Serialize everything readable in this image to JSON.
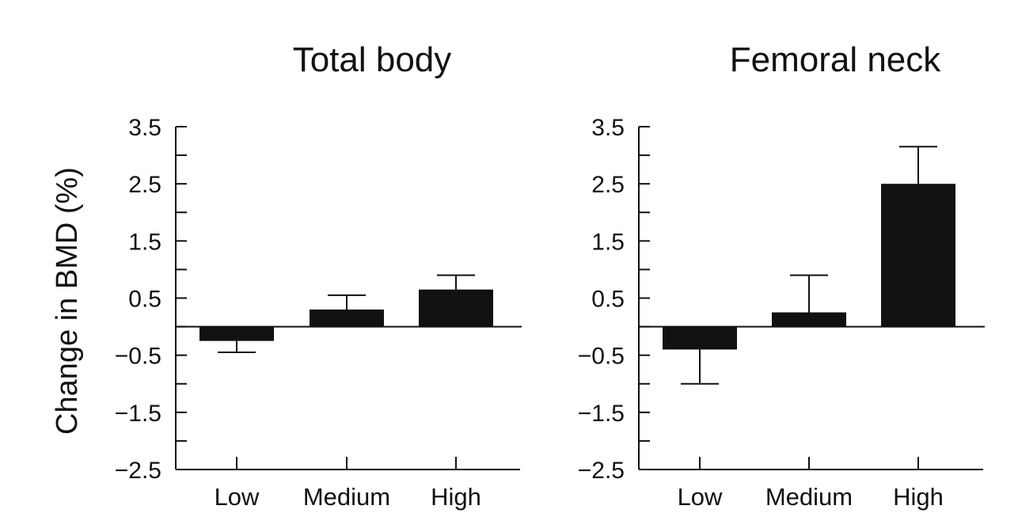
{
  "chart_data": [
    {
      "type": "bar",
      "title": "Total body",
      "ylabel": "Change in BMD (%)",
      "xlabel": "",
      "categories": [
        "Low",
        "Medium",
        "High"
      ],
      "values": [
        -0.25,
        0.3,
        0.65
      ],
      "error_plus": [
        0.2,
        0.25,
        0.25
      ],
      "error_minus": [
        0.2,
        0.25,
        0.25
      ],
      "ylim": [
        -2.5,
        3.5
      ],
      "yticks": [
        -2.5,
        -1.5,
        -0.5,
        0.5,
        1.5,
        2.5,
        3.5
      ],
      "ytick_labels": [
        "−2.5",
        "−1.5",
        "−0.5",
        "0.5",
        "1.5",
        "2.5",
        "3.5"
      ],
      "grid": false,
      "bar_color": "#111111"
    },
    {
      "type": "bar",
      "title": "Femoral neck",
      "ylabel": "",
      "xlabel": "",
      "categories": [
        "Low",
        "Medium",
        "High"
      ],
      "values": [
        -0.4,
        0.25,
        2.5
      ],
      "error_plus": [
        0.6,
        0.65,
        0.65
      ],
      "error_minus": [
        0.6,
        0.65,
        0.65
      ],
      "ylim": [
        -2.5,
        3.5
      ],
      "yticks": [
        -2.5,
        -1.5,
        -0.5,
        0.5,
        1.5,
        2.5,
        3.5
      ],
      "ytick_labels": [
        "−2.5",
        "−1.5",
        "−0.5",
        "0.5",
        "1.5",
        "2.5",
        "3.5"
      ],
      "grid": false,
      "bar_color": "#111111"
    }
  ]
}
